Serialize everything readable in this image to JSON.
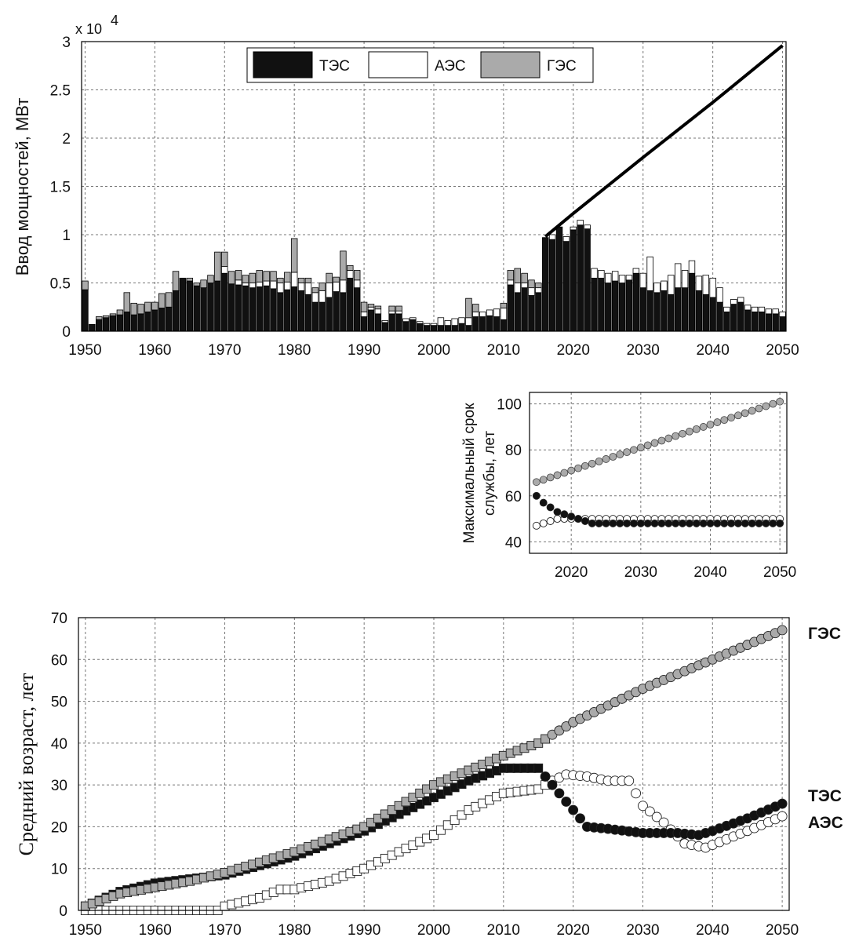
{
  "chart_data": [
    {
      "id": "capacity",
      "type": "bar",
      "ylabel": "Ввод мощностей, МВт",
      "exponent_label": "x 10",
      "exponent_power": "4",
      "xlim": [
        1949.5,
        2050.5
      ],
      "ylim": [
        0,
        3
      ],
      "xticks": [
        1950,
        1960,
        1970,
        1980,
        1990,
        2000,
        2010,
        2020,
        2030,
        2040,
        2050
      ],
      "yticks": [
        0,
        0.5,
        1,
        1.5,
        2,
        2.5,
        3
      ],
      "ytick_labels": [
        "0",
        "0.5",
        "1",
        "1.5",
        "2",
        "2.5",
        "3"
      ],
      "grid": true,
      "legend": {
        "position": "top-center",
        "items": [
          {
            "name": "ТЭС",
            "color": "#111111"
          },
          {
            "name": "АЭС",
            "color": "#ffffff"
          },
          {
            "name": "ГЭС",
            "color": "#aaaaaa"
          }
        ]
      },
      "series_colors": {
        "tes": "#111111",
        "aes": "#ffffff",
        "ges": "#aaaaaa"
      },
      "categories": [
        1950,
        1951,
        1952,
        1953,
        1954,
        1955,
        1956,
        1957,
        1958,
        1959,
        1960,
        1961,
        1962,
        1963,
        1964,
        1965,
        1966,
        1967,
        1968,
        1969,
        1970,
        1971,
        1972,
        1973,
        1974,
        1975,
        1976,
        1977,
        1978,
        1979,
        1980,
        1981,
        1982,
        1983,
        1984,
        1985,
        1986,
        1987,
        1988,
        1989,
        1990,
        1991,
        1992,
        1993,
        1994,
        1995,
        1996,
        1997,
        1998,
        1999,
        2000,
        2001,
        2002,
        2003,
        2004,
        2005,
        2006,
        2007,
        2008,
        2009,
        2010,
        2011,
        2012,
        2013,
        2014,
        2015,
        2016,
        2017,
        2018,
        2019,
        2020,
        2021,
        2022,
        2023,
        2024,
        2025,
        2026,
        2027,
        2028,
        2029,
        2030,
        2031,
        2032,
        2033,
        2034,
        2035,
        2036,
        2037,
        2038,
        2039,
        2040,
        2041,
        2042,
        2043,
        2044,
        2045,
        2046,
        2047,
        2048,
        2049,
        2050
      ],
      "series": [
        {
          "name": "ТЭС",
          "values": [
            0.43,
            0.07,
            0.12,
            0.14,
            0.16,
            0.17,
            0.2,
            0.17,
            0.18,
            0.2,
            0.22,
            0.24,
            0.25,
            0.42,
            0.55,
            0.52,
            0.47,
            0.45,
            0.5,
            0.52,
            0.6,
            0.49,
            0.48,
            0.47,
            0.45,
            0.46,
            0.47,
            0.44,
            0.4,
            0.43,
            0.46,
            0.42,
            0.38,
            0.3,
            0.3,
            0.35,
            0.41,
            0.4,
            0.55,
            0.45,
            0.15,
            0.22,
            0.18,
            0.09,
            0.18,
            0.18,
            0.1,
            0.12,
            0.08,
            0.06,
            0.06,
            0.06,
            0.06,
            0.06,
            0.08,
            0.06,
            0.15,
            0.15,
            0.16,
            0.15,
            0.12,
            0.48,
            0.4,
            0.45,
            0.37,
            0.4,
            0.97,
            0.95,
            1.08,
            0.93,
            1.05,
            1.1,
            1.06,
            0.55,
            0.55,
            0.5,
            0.52,
            0.5,
            0.53,
            0.6,
            0.45,
            0.42,
            0.4,
            0.42,
            0.38,
            0.45,
            0.45,
            0.6,
            0.42,
            0.38,
            0.35,
            0.3,
            0.2,
            0.28,
            0.3,
            0.22,
            0.2,
            0.2,
            0.18,
            0.18,
            0.15
          ],
          "values_aes": [
            0,
            0,
            0,
            0,
            0,
            0,
            0,
            0,
            0,
            0,
            0,
            0,
            0,
            0,
            0,
            0,
            0,
            0,
            0,
            0,
            0.07,
            0,
            0.05,
            0.03,
            0.05,
            0.05,
            0.05,
            0.08,
            0.1,
            0.08,
            0.15,
            0.08,
            0.12,
            0.1,
            0.12,
            0.15,
            0.1,
            0.13,
            0.08,
            0.08,
            0.05,
            0.03,
            0.05,
            0.02,
            0.03,
            0.03,
            0.03,
            0.02,
            0.02,
            0.02,
            0.02,
            0.08,
            0.05,
            0.07,
            0.06,
            0.08,
            0.05,
            0.05,
            0.06,
            0.08,
            0.12,
            0.05,
            0.1,
            0.05,
            0.08,
            0.05,
            0,
            0.05,
            0,
            0.05,
            0.03,
            0.05,
            0.04,
            0.1,
            0.08,
            0.1,
            0.1,
            0.08,
            0.05,
            0.05,
            0.15,
            0.35,
            0.1,
            0.1,
            0.2,
            0.25,
            0.18,
            0.13,
            0.15,
            0.2,
            0.2,
            0.15,
            0.05,
            0.05,
            0.05,
            0.05,
            0.05,
            0.05,
            0.05,
            0.05,
            0.05
          ]
        },
        {
          "name": "АЭС",
          "values": [
            0,
            0,
            0,
            0,
            0,
            0,
            0,
            0,
            0,
            0,
            0,
            0,
            0,
            0,
            0,
            0,
            0,
            0,
            0,
            0,
            0.07,
            0,
            0.05,
            0.03,
            0.05,
            0.05,
            0.05,
            0.08,
            0.1,
            0.08,
            0.15,
            0.08,
            0.12,
            0.1,
            0.12,
            0.15,
            0.1,
            0.13,
            0.08,
            0.08,
            0.05,
            0.03,
            0.05,
            0.02,
            0.03,
            0.03,
            0.03,
            0.02,
            0.02,
            0.02,
            0.02,
            0.08,
            0.05,
            0.07,
            0.06,
            0.08,
            0.05,
            0.05,
            0.06,
            0.08,
            0.12,
            0.05,
            0.1,
            0.05,
            0.08,
            0.05,
            0,
            0.05,
            0,
            0.05,
            0.03,
            0.05,
            0.04,
            0.1,
            0.08,
            0.1,
            0.1,
            0.08,
            0.05,
            0.05,
            0.15,
            0.35,
            0.1,
            0.1,
            0.2,
            0.25,
            0.18,
            0.13,
            0.15,
            0.2,
            0.2,
            0.15,
            0.05,
            0.05,
            0.05,
            0.05,
            0.05,
            0.05,
            0.05,
            0.05,
            0.05
          ]
        },
        {
          "name": "ГЭС",
          "values": [
            0.09,
            0,
            0.03,
            0.02,
            0.02,
            0.05,
            0.2,
            0.12,
            0.1,
            0.1,
            0.08,
            0.15,
            0.15,
            0.2,
            0,
            0.03,
            0.03,
            0.08,
            0.08,
            0.3,
            0.15,
            0.13,
            0.1,
            0.08,
            0.1,
            0.12,
            0.1,
            0.1,
            0.05,
            0.1,
            0.35,
            0.05,
            0.05,
            0.05,
            0.08,
            0.1,
            0.05,
            0.3,
            0.05,
            0.1,
            0.1,
            0.03,
            0.03,
            0,
            0.05,
            0.05,
            0,
            0,
            0,
            0,
            0,
            0,
            0,
            0,
            0,
            0.2,
            0.08,
            0,
            0,
            0,
            0.05,
            0.1,
            0.15,
            0.1,
            0.08,
            0.05,
            0,
            0,
            0,
            0,
            0,
            0,
            0,
            0,
            0,
            0,
            0,
            0,
            0,
            0,
            0,
            0,
            0,
            0,
            0,
            0,
            0,
            0,
            0,
            0,
            0,
            0,
            0,
            0,
            0,
            0,
            0,
            0,
            0,
            0,
            0
          ]
        }
      ],
      "trend_line": {
        "x": [
          2016,
          2020,
          2030,
          2040,
          2050
        ],
        "y": [
          0.98,
          1.22,
          1.8,
          2.37,
          2.96
        ]
      }
    },
    {
      "id": "lifetime",
      "type": "scatter",
      "ylabel": "Максимальный срок службы, лет",
      "ylabel_lines": [
        "Максимальный срок",
        "службы, лет"
      ],
      "xlim": [
        2014,
        2051
      ],
      "ylim": [
        35,
        105
      ],
      "xticks": [
        2020,
        2030,
        2040,
        2050
      ],
      "yticks": [
        40,
        60,
        80,
        100
      ],
      "grid": true,
      "series": [
        {
          "name": "ГЭС",
          "color": "#aaaaaa",
          "x_start": 2015,
          "x_end": 2050,
          "y_start": 66,
          "y_end": 101
        },
        {
          "name": "ТЭС",
          "color": "#111111",
          "x": [
            2015,
            2016,
            2017,
            2018,
            2019,
            2020,
            2021,
            2022,
            2023,
            2024,
            2025,
            2026,
            2027,
            2028,
            2029,
            2030,
            2031,
            2032,
            2033,
            2034,
            2035,
            2036,
            2037,
            2038,
            2039,
            2040,
            2041,
            2042,
            2043,
            2044,
            2045,
            2046,
            2047,
            2048,
            2049,
            2050
          ],
          "y": [
            60,
            57,
            55,
            53,
            52,
            51,
            50,
            49,
            48,
            48,
            48,
            48,
            48,
            48,
            48,
            48,
            48,
            48,
            48,
            48,
            48,
            48,
            48,
            48,
            48,
            48,
            48,
            48,
            48,
            48,
            48,
            48,
            48,
            48,
            48,
            48
          ]
        },
        {
          "name": "АЭС",
          "color": "#ffffff",
          "x": [
            2015,
            2016,
            2017,
            2018,
            2019,
            2020,
            2021,
            2022,
            2023,
            2024,
            2025,
            2026,
            2027,
            2028,
            2029,
            2030,
            2031,
            2032,
            2033,
            2034,
            2035,
            2036,
            2037,
            2038,
            2039,
            2040,
            2041,
            2042,
            2043,
            2044,
            2045,
            2046,
            2047,
            2048,
            2049,
            2050
          ],
          "y": [
            47,
            48,
            49,
            50,
            50,
            50,
            50,
            50,
            50,
            50,
            50,
            50,
            50,
            50,
            50,
            50,
            50,
            50,
            50,
            50,
            50,
            50,
            50,
            50,
            50,
            50,
            50,
            50,
            50,
            50,
            50,
            50,
            50,
            50,
            50,
            50
          ]
        }
      ]
    },
    {
      "id": "avg_age",
      "type": "scatter",
      "ylabel": "Средний возраст, лет",
      "xlim": [
        1949,
        2051
      ],
      "ylim": [
        0,
        70
      ],
      "xticks": [
        1950,
        1960,
        1970,
        1980,
        1990,
        2000,
        2010,
        2020,
        2030,
        2040,
        2050
      ],
      "yticks": [
        0,
        10,
        20,
        30,
        40,
        50,
        60,
        70
      ],
      "grid": true,
      "end_labels": [
        "ГЭС",
        "ТЭС",
        "АЭС"
      ],
      "series": [
        {
          "name": "ГЭС",
          "color": "#aaaaaa",
          "keypoints": [
            [
              1950,
              1
            ],
            [
              1955,
              4
            ],
            [
              1960,
              5.5
            ],
            [
              1965,
              7
            ],
            [
              1970,
              9
            ],
            [
              1980,
              14
            ],
            [
              1990,
              20
            ],
            [
              2000,
              30
            ],
            [
              2010,
              37
            ],
            [
              2015,
              40
            ],
            [
              2020,
              45
            ],
            [
              2030,
              53
            ],
            [
              2040,
              60
            ],
            [
              2050,
              67
            ]
          ]
        },
        {
          "name": "ТЭС",
          "color": "#111111",
          "keypoints": [
            [
              1950,
              1
            ],
            [
              1955,
              4.5
            ],
            [
              1960,
              6.5
            ],
            [
              1965,
              7.5
            ],
            [
              1970,
              8.5
            ],
            [
              1980,
              13
            ],
            [
              1990,
              19
            ],
            [
              2000,
              27
            ],
            [
              2005,
              31
            ],
            [
              2010,
              34
            ],
            [
              2015,
              34
            ],
            [
              2016,
              32
            ],
            [
              2018,
              28
            ],
            [
              2020,
              24
            ],
            [
              2022,
              20
            ],
            [
              2025,
              19.5
            ],
            [
              2030,
              18.5
            ],
            [
              2035,
              18.5
            ],
            [
              2038,
              18
            ],
            [
              2040,
              19
            ],
            [
              2045,
              22
            ],
            [
              2050,
              25.5
            ]
          ]
        },
        {
          "name": "АЭС",
          "color": "#ffffff",
          "keypoints": [
            [
              1950,
              0
            ],
            [
              1969,
              0
            ],
            [
              1970,
              1
            ],
            [
              1975,
              3
            ],
            [
              1978,
              5
            ],
            [
              1980,
              5
            ],
            [
              1985,
              7
            ],
            [
              1990,
              10
            ],
            [
              1995,
              14
            ],
            [
              2000,
              18
            ],
            [
              2005,
              24
            ],
            [
              2010,
              28
            ],
            [
              2015,
              29
            ],
            [
              2017,
              31
            ],
            [
              2019,
              32.5
            ],
            [
              2022,
              32
            ],
            [
              2025,
              31
            ],
            [
              2028,
              31
            ],
            [
              2030,
              25
            ],
            [
              2033,
              21
            ],
            [
              2036,
              16
            ],
            [
              2039,
              15
            ],
            [
              2042,
              17
            ],
            [
              2045,
              19
            ],
            [
              2050,
              22.5
            ]
          ]
        }
      ]
    }
  ]
}
